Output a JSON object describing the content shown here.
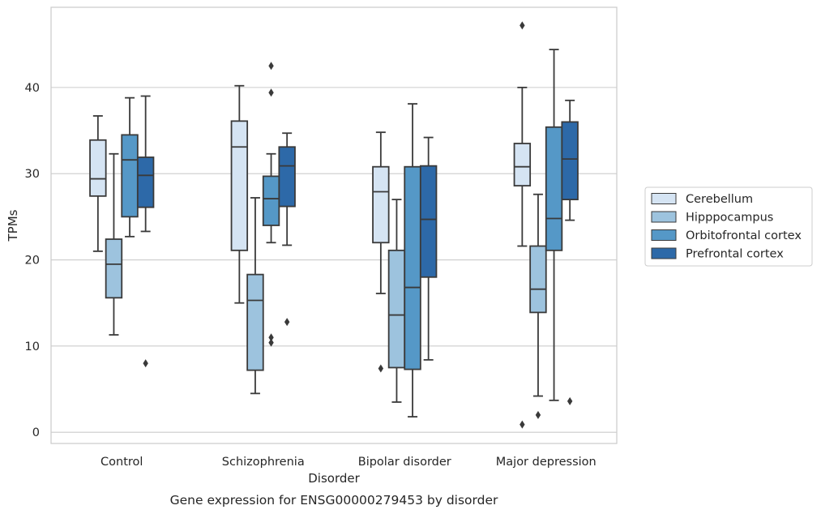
{
  "chart_data": {
    "type": "box",
    "xlabel": "Disorder",
    "ylabel": "TPMs",
    "caption": "Gene expression for ENSG00000279453 by disorder",
    "ylim": [
      -1.3,
      49.3
    ],
    "yticks": [
      0,
      10,
      20,
      30,
      40
    ],
    "grid": true,
    "legend_position": "right",
    "categories": [
      "Control",
      "Schizophrenia",
      "Bipolar disorder",
      "Major depression"
    ],
    "series": [
      {
        "name": "Cerebellum",
        "color": "#d5e4f3",
        "boxes": [
          {
            "whislo": 21.0,
            "q1": 27.4,
            "med": 29.4,
            "q3": 33.9,
            "whishi": 36.7,
            "fliers": []
          },
          {
            "whislo": 15.0,
            "q1": 21.1,
            "med": 33.1,
            "q3": 36.1,
            "whishi": 40.2,
            "fliers": []
          },
          {
            "whislo": 16.1,
            "q1": 22.0,
            "med": 27.9,
            "q3": 30.8,
            "whishi": 34.8,
            "fliers": [
              7.4
            ]
          },
          {
            "whislo": 21.6,
            "q1": 28.6,
            "med": 30.8,
            "q3": 33.5,
            "whishi": 40.0,
            "fliers": [
              47.2,
              0.9
            ]
          }
        ]
      },
      {
        "name": "Hipppocampus",
        "color": "#9dc3de",
        "boxes": [
          {
            "whislo": 11.3,
            "q1": 15.6,
            "med": 19.5,
            "q3": 22.4,
            "whishi": 32.3,
            "fliers": []
          },
          {
            "whislo": 4.5,
            "q1": 7.2,
            "med": 15.3,
            "q3": 18.3,
            "whishi": 27.2,
            "fliers": []
          },
          {
            "whislo": 3.5,
            "q1": 7.5,
            "med": 13.6,
            "q3": 21.1,
            "whishi": 27.0,
            "fliers": []
          },
          {
            "whislo": 4.2,
            "q1": 13.9,
            "med": 16.6,
            "q3": 21.6,
            "whishi": 27.6,
            "fliers": [
              2.0
            ]
          }
        ]
      },
      {
        "name": "Orbitofrontal cortex",
        "color": "#5598c7",
        "boxes": [
          {
            "whislo": 22.7,
            "q1": 25.0,
            "med": 31.6,
            "q3": 34.5,
            "whishi": 38.8,
            "fliers": []
          },
          {
            "whislo": 22.0,
            "q1": 24.0,
            "med": 27.1,
            "q3": 29.7,
            "whishi": 32.3,
            "fliers": [
              42.5,
              39.4,
              11.0,
              10.4
            ]
          },
          {
            "whislo": 1.8,
            "q1": 7.3,
            "med": 16.8,
            "q3": 30.8,
            "whishi": 38.1,
            "fliers": []
          },
          {
            "whislo": 3.7,
            "q1": 21.1,
            "med": 24.8,
            "q3": 35.4,
            "whishi": 44.4,
            "fliers": []
          }
        ]
      },
      {
        "name": "Prefrontal cortex",
        "color": "#2d69a8",
        "boxes": [
          {
            "whislo": 23.3,
            "q1": 26.1,
            "med": 29.8,
            "q3": 31.9,
            "whishi": 39.0,
            "fliers": [
              8.0
            ]
          },
          {
            "whislo": 21.7,
            "q1": 26.2,
            "med": 30.9,
            "q3": 33.1,
            "whishi": 34.7,
            "fliers": [
              12.8
            ]
          },
          {
            "whislo": 8.4,
            "q1": 18.0,
            "med": 24.7,
            "q3": 30.9,
            "whishi": 34.2,
            "fliers": []
          },
          {
            "whislo": 24.6,
            "q1": 27.0,
            "med": 31.7,
            "q3": 36.0,
            "whishi": 38.5,
            "fliers": [
              3.6
            ]
          }
        ]
      }
    ]
  }
}
